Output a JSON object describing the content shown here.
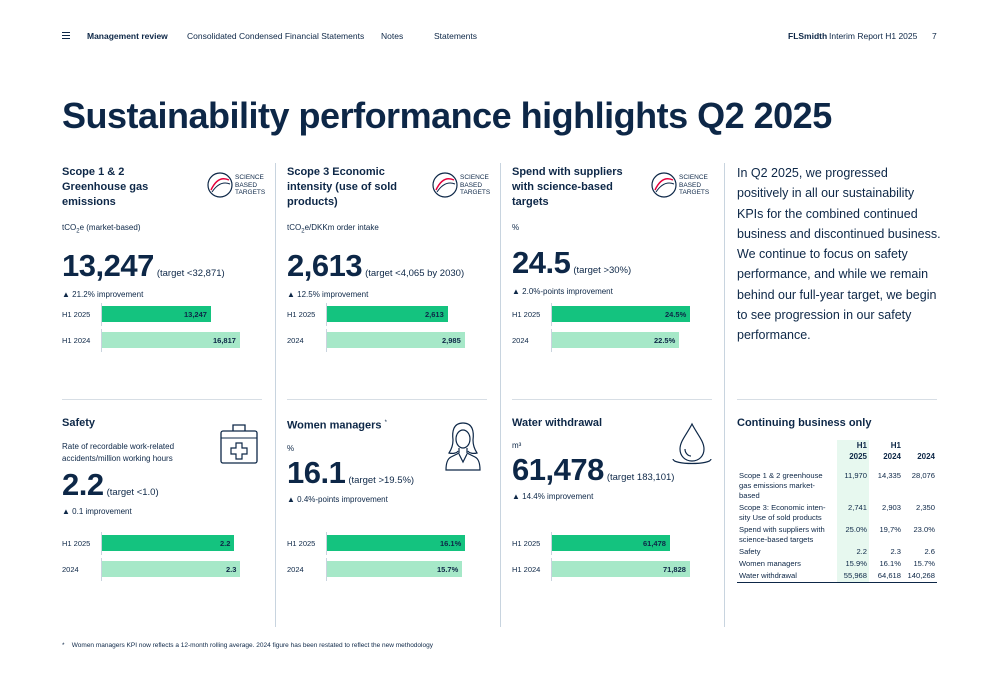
{
  "nav": {
    "items": [
      "Management review",
      "Consolidated Condensed Financial Statements",
      "Notes",
      "Statements"
    ],
    "brand": "FLSmidth",
    "report": "Interim Report H1 2025",
    "page_number": "7"
  },
  "title": "Sustainability performance highlights Q2 2025",
  "sbt_logo_text": [
    "SCIENCE",
    "BASED",
    "TARGETS"
  ],
  "cards": [
    {
      "title": "Scope 1 & 2 Greenhouse gas emissions",
      "unit_prefix": "tCO",
      "unit_sub": "2",
      "unit_suffix": "e (market-based)",
      "value": "13,247",
      "target": "(target <32,871)",
      "improvement": "▲ 21.2% improvement",
      "bars": [
        {
          "label": "H1 2025",
          "value": 13247,
          "display": "13,247",
          "style": "dark"
        },
        {
          "label": "H1 2024",
          "value": 16817,
          "display": "16,817",
          "style": "light"
        }
      ]
    },
    {
      "title": "Scope 3 Economic intensity (use of sold products)",
      "unit_prefix": "tCO",
      "unit_sub": "2",
      "unit_suffix": "e/DKKm order intake",
      "value": "2,613",
      "target": "(target <4,065 by 2030)",
      "improvement": "▲ 12.5% improvement",
      "bars": [
        {
          "label": "H1 2025",
          "value": 2613,
          "display": "2,613",
          "style": "dark"
        },
        {
          "label": "2024",
          "value": 2985,
          "display": "2,985",
          "style": "light"
        }
      ]
    },
    {
      "title": "Spend with suppliers with science-based targets",
      "unit_prefix": "%",
      "unit_sub": "",
      "unit_suffix": "",
      "value": "24.5",
      "target": "(target >30%)",
      "improvement": "▲ 2.0%-points improvement",
      "bars": [
        {
          "label": "H1 2025",
          "value": 24.5,
          "display": "24.5%",
          "style": "dark"
        },
        {
          "label": "2024",
          "value": 22.5,
          "display": "22.5%",
          "style": "light"
        }
      ]
    },
    {
      "title": "Safety",
      "unit_prefix": "Rate of recordable work-related accidents/million working hours",
      "unit_sub": "",
      "unit_suffix": "",
      "value": "2.2",
      "target": "(target <1.0)",
      "improvement": "▲ 0.1 improvement",
      "bars": [
        {
          "label": "H1 2025",
          "value": 2.2,
          "display": "2.2",
          "style": "dark"
        },
        {
          "label": "2024",
          "value": 2.3,
          "display": "2.3",
          "style": "light"
        }
      ]
    },
    {
      "title": "Women managers",
      "title_mark": "*",
      "unit_prefix": "%",
      "unit_sub": "",
      "unit_suffix": "",
      "value": "16.1",
      "target": "(target >19.5%)",
      "improvement": "▲ 0.4%-points improvement",
      "bars": [
        {
          "label": "H1 2025",
          "value": 16.1,
          "display": "16.1%",
          "style": "dark"
        },
        {
          "label": "2024",
          "value": 15.7,
          "display": "15.7%",
          "style": "light"
        }
      ]
    },
    {
      "title": "Water withdrawal",
      "unit_prefix": "m³",
      "unit_sub": "",
      "unit_suffix": "",
      "value": "61,478",
      "target": "(target 183,101)",
      "improvement": "▲ 14.4% improvement",
      "bars": [
        {
          "label": "H1 2025",
          "value": 61478,
          "display": "61,478",
          "style": "dark"
        },
        {
          "label": "H1 2024",
          "value": 71828,
          "display": "71,828",
          "style": "light"
        }
      ]
    }
  ],
  "intro_text": "In Q2 2025, we progressed positively in all our sustainability KPIs for the combined continued business and discontinued business. We continue to focus on safety performance, and while we remain behind our full-year target, we begin to see progression in our safety performance.",
  "table": {
    "title": "Continuing business only",
    "headers": [
      [
        "H1",
        "2025"
      ],
      [
        "H1",
        "2024"
      ],
      [
        "",
        "2024"
      ]
    ],
    "rows": [
      {
        "label": "Scope 1 & 2 greenhouse gas emissions market-based",
        "values": [
          "11,970",
          "14,335",
          "28,076"
        ]
      },
      {
        "label": "Scope 3: Economic inten-sity Use of sold products",
        "values": [
          "2,741",
          "2,903",
          "2,350"
        ]
      },
      {
        "label": "Spend with suppliers with science-based targets",
        "values": [
          "25.0%",
          "19,7%",
          "23.0%"
        ]
      },
      {
        "label": "Safety",
        "values": [
          "2.2",
          "2.3",
          "2.6"
        ]
      },
      {
        "label": "Women managers",
        "values": [
          "15.9%",
          "16.1%",
          "15.7%"
        ]
      },
      {
        "label": "Water withdrawal",
        "values": [
          "55,968",
          "64,618",
          "140,268"
        ]
      }
    ]
  },
  "footnote": {
    "mark": "*",
    "text": "Women managers KPI now reflects a 12-month rolling average. 2024 figure has been restated to reflect the new methodology"
  },
  "colors": {
    "navy": "#0d2747",
    "bar_dark": "#14c37f",
    "bar_light": "#a6e8c8",
    "table_highlight": "#e7f8ef"
  }
}
